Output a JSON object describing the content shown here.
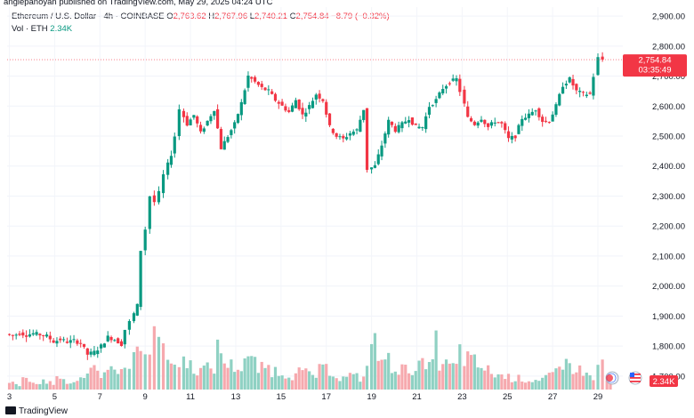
{
  "publisher": "angiepanoyan published on TradingView.com, May 29, 2025 04:24 UTC",
  "legend": {
    "symbol": "Ethereum / U.S. Dollar · 4h · COINBASE",
    "open_label": "O",
    "open": "2,763.62",
    "high_label": "H",
    "high": "2,767.96",
    "low_label": "L",
    "low": "2,740.21",
    "close_label": "C",
    "close": "2,754.84",
    "change": "−8.79 (−0.32%)",
    "vol_label": "Vol · ETH",
    "vol_value": "2.34K"
  },
  "footer": {
    "brand": "TradingView"
  },
  "chart_data": {
    "type": "candlestick",
    "title": "Ethereum / U.S. Dollar · 4h · COINBASE",
    "y_ticks": [
      "2,900.00",
      "2,800.00",
      "2,700.00",
      "2,600.00",
      "2,500.00",
      "2,400.00",
      "2,300.00",
      "2,200.00",
      "2,100.00",
      "2,000.00",
      "1,900.00",
      "1,800.00",
      "1,700.00"
    ],
    "ylim": [
      1655,
      2930
    ],
    "x_ticks": [
      "3",
      "5",
      "7",
      "9",
      "11",
      "13",
      "15",
      "17",
      "19",
      "21",
      "23",
      "25",
      "27",
      "29"
    ],
    "x_tick_days": [
      3,
      5,
      7,
      9,
      11,
      13,
      15,
      17,
      19,
      21,
      23,
      25,
      27,
      29
    ],
    "day_range": [
      2.9,
      30.1
    ],
    "last_price_label": "2,754.84",
    "countdown_label": "03:35:49",
    "volume_label": "2.34K",
    "last_price": 2754.84,
    "colors": {
      "up": "#089981",
      "down": "#f23645",
      "up_vol": "#8fd1c3",
      "down_vol": "#f6a9ae"
    },
    "ohlc_points": [
      [
        3.0,
        1840
      ],
      [
        3.3,
        1835
      ],
      [
        3.6,
        1843
      ],
      [
        3.9,
        1837
      ],
      [
        4.2,
        1842
      ],
      [
        4.5,
        1838
      ],
      [
        4.8,
        1833
      ],
      [
        5.1,
        1815
      ],
      [
        5.4,
        1822
      ],
      [
        5.7,
        1814
      ],
      [
        6.0,
        1818
      ],
      [
        6.3,
        1810
      ],
      [
        6.6,
        1772
      ],
      [
        6.9,
        1780
      ],
      [
        7.2,
        1800
      ],
      [
        7.5,
        1830
      ],
      [
        7.8,
        1822
      ],
      [
        8.1,
        1806
      ],
      [
        8.3,
        1855
      ],
      [
        8.5,
        1880
      ],
      [
        8.8,
        1935
      ],
      [
        9.0,
        2120
      ],
      [
        9.2,
        2190
      ],
      [
        9.4,
        2300
      ],
      [
        9.6,
        2280
      ],
      [
        9.8,
        2310
      ],
      [
        10.0,
        2370
      ],
      [
        10.3,
        2440
      ],
      [
        10.5,
        2500
      ],
      [
        10.7,
        2590
      ],
      [
        11.0,
        2540
      ],
      [
        11.3,
        2570
      ],
      [
        11.6,
        2510
      ],
      [
        11.9,
        2550
      ],
      [
        12.2,
        2590
      ],
      [
        12.5,
        2460
      ],
      [
        12.8,
        2500
      ],
      [
        13.1,
        2540
      ],
      [
        13.4,
        2610
      ],
      [
        13.7,
        2700
      ],
      [
        14.0,
        2680
      ],
      [
        14.3,
        2660
      ],
      [
        14.6,
        2650
      ],
      [
        14.9,
        2620
      ],
      [
        15.2,
        2600
      ],
      [
        15.5,
        2580
      ],
      [
        15.8,
        2620
      ],
      [
        16.1,
        2570
      ],
      [
        16.4,
        2600
      ],
      [
        16.7,
        2640
      ],
      [
        17.0,
        2620
      ],
      [
        17.3,
        2530
      ],
      [
        17.6,
        2500
      ],
      [
        17.9,
        2490
      ],
      [
        18.2,
        2510
      ],
      [
        18.5,
        2520
      ],
      [
        18.8,
        2590
      ],
      [
        19.0,
        2390
      ],
      [
        19.3,
        2400
      ],
      [
        19.6,
        2470
      ],
      [
        19.9,
        2550
      ],
      [
        20.2,
        2520
      ],
      [
        20.5,
        2540
      ],
      [
        20.8,
        2560
      ],
      [
        21.1,
        2530
      ],
      [
        21.4,
        2530
      ],
      [
        21.7,
        2600
      ],
      [
        22.0,
        2620
      ],
      [
        22.3,
        2660
      ],
      [
        22.6,
        2680
      ],
      [
        22.9,
        2690
      ],
      [
        23.1,
        2650
      ],
      [
        23.4,
        2560
      ],
      [
        23.7,
        2540
      ],
      [
        24.0,
        2560
      ],
      [
        24.3,
        2530
      ],
      [
        24.6,
        2550
      ],
      [
        24.9,
        2540
      ],
      [
        25.2,
        2490
      ],
      [
        25.5,
        2500
      ],
      [
        25.8,
        2560
      ],
      [
        26.1,
        2570
      ],
      [
        26.4,
        2590
      ],
      [
        26.7,
        2550
      ],
      [
        27.0,
        2550
      ],
      [
        27.3,
        2600
      ],
      [
        27.6,
        2670
      ],
      [
        27.9,
        2690
      ],
      [
        28.2,
        2650
      ],
      [
        28.5,
        2640
      ],
      [
        28.8,
        2640
      ],
      [
        29.0,
        2700
      ],
      [
        29.2,
        2760
      ],
      [
        29.4,
        2755
      ]
    ],
    "volume_points": [
      [
        3.0,
        8
      ],
      [
        3.3,
        6
      ],
      [
        3.6,
        12
      ],
      [
        3.9,
        9
      ],
      [
        4.2,
        7
      ],
      [
        4.5,
        11
      ],
      [
        4.8,
        8
      ],
      [
        5.1,
        14
      ],
      [
        5.4,
        10
      ],
      [
        5.7,
        9
      ],
      [
        6.0,
        13
      ],
      [
        6.3,
        18
      ],
      [
        6.6,
        34
      ],
      [
        6.9,
        22
      ],
      [
        7.2,
        26
      ],
      [
        7.5,
        30
      ],
      [
        7.8,
        20
      ],
      [
        8.1,
        24
      ],
      [
        8.3,
        38
      ],
      [
        8.5,
        42
      ],
      [
        8.8,
        48
      ],
      [
        9.0,
        62
      ],
      [
        9.2,
        55
      ],
      [
        9.4,
        102
      ],
      [
        9.6,
        66
      ],
      [
        9.8,
        44
      ],
      [
        10.0,
        40
      ],
      [
        10.3,
        32
      ],
      [
        10.5,
        28
      ],
      [
        10.7,
        38
      ],
      [
        11.0,
        30
      ],
      [
        11.3,
        24
      ],
      [
        11.6,
        26
      ],
      [
        11.9,
        28
      ],
      [
        12.2,
        50
      ],
      [
        12.5,
        34
      ],
      [
        12.8,
        30
      ],
      [
        13.1,
        28
      ],
      [
        13.4,
        40
      ],
      [
        13.7,
        34
      ],
      [
        14.0,
        26
      ],
      [
        14.3,
        28
      ],
      [
        14.6,
        24
      ],
      [
        14.9,
        22
      ],
      [
        15.2,
        20
      ],
      [
        15.5,
        18
      ],
      [
        15.8,
        22
      ],
      [
        16.1,
        20
      ],
      [
        16.4,
        18
      ],
      [
        16.7,
        24
      ],
      [
        17.0,
        26
      ],
      [
        17.3,
        20
      ],
      [
        17.6,
        14
      ],
      [
        17.9,
        18
      ],
      [
        18.2,
        16
      ],
      [
        18.5,
        14
      ],
      [
        18.8,
        40
      ],
      [
        19.0,
        56
      ],
      [
        19.3,
        40
      ],
      [
        19.6,
        36
      ],
      [
        19.9,
        30
      ],
      [
        20.2,
        26
      ],
      [
        20.5,
        24
      ],
      [
        20.8,
        28
      ],
      [
        21.1,
        30
      ],
      [
        21.4,
        26
      ],
      [
        21.7,
        58
      ],
      [
        22.0,
        32
      ],
      [
        22.3,
        30
      ],
      [
        22.6,
        28
      ],
      [
        22.9,
        48
      ],
      [
        23.1,
        40
      ],
      [
        23.4,
        34
      ],
      [
        23.7,
        30
      ],
      [
        24.0,
        24
      ],
      [
        24.3,
        20
      ],
      [
        24.6,
        18
      ],
      [
        24.9,
        16
      ],
      [
        25.2,
        14
      ],
      [
        25.5,
        14
      ],
      [
        25.8,
        12
      ],
      [
        26.1,
        12
      ],
      [
        26.4,
        14
      ],
      [
        26.7,
        16
      ],
      [
        27.0,
        20
      ],
      [
        27.3,
        22
      ],
      [
        27.6,
        34
      ],
      [
        27.9,
        28
      ],
      [
        28.2,
        24
      ],
      [
        28.5,
        18
      ],
      [
        28.8,
        16
      ],
      [
        29.0,
        26
      ],
      [
        29.2,
        34
      ],
      [
        29.4,
        12
      ]
    ]
  }
}
